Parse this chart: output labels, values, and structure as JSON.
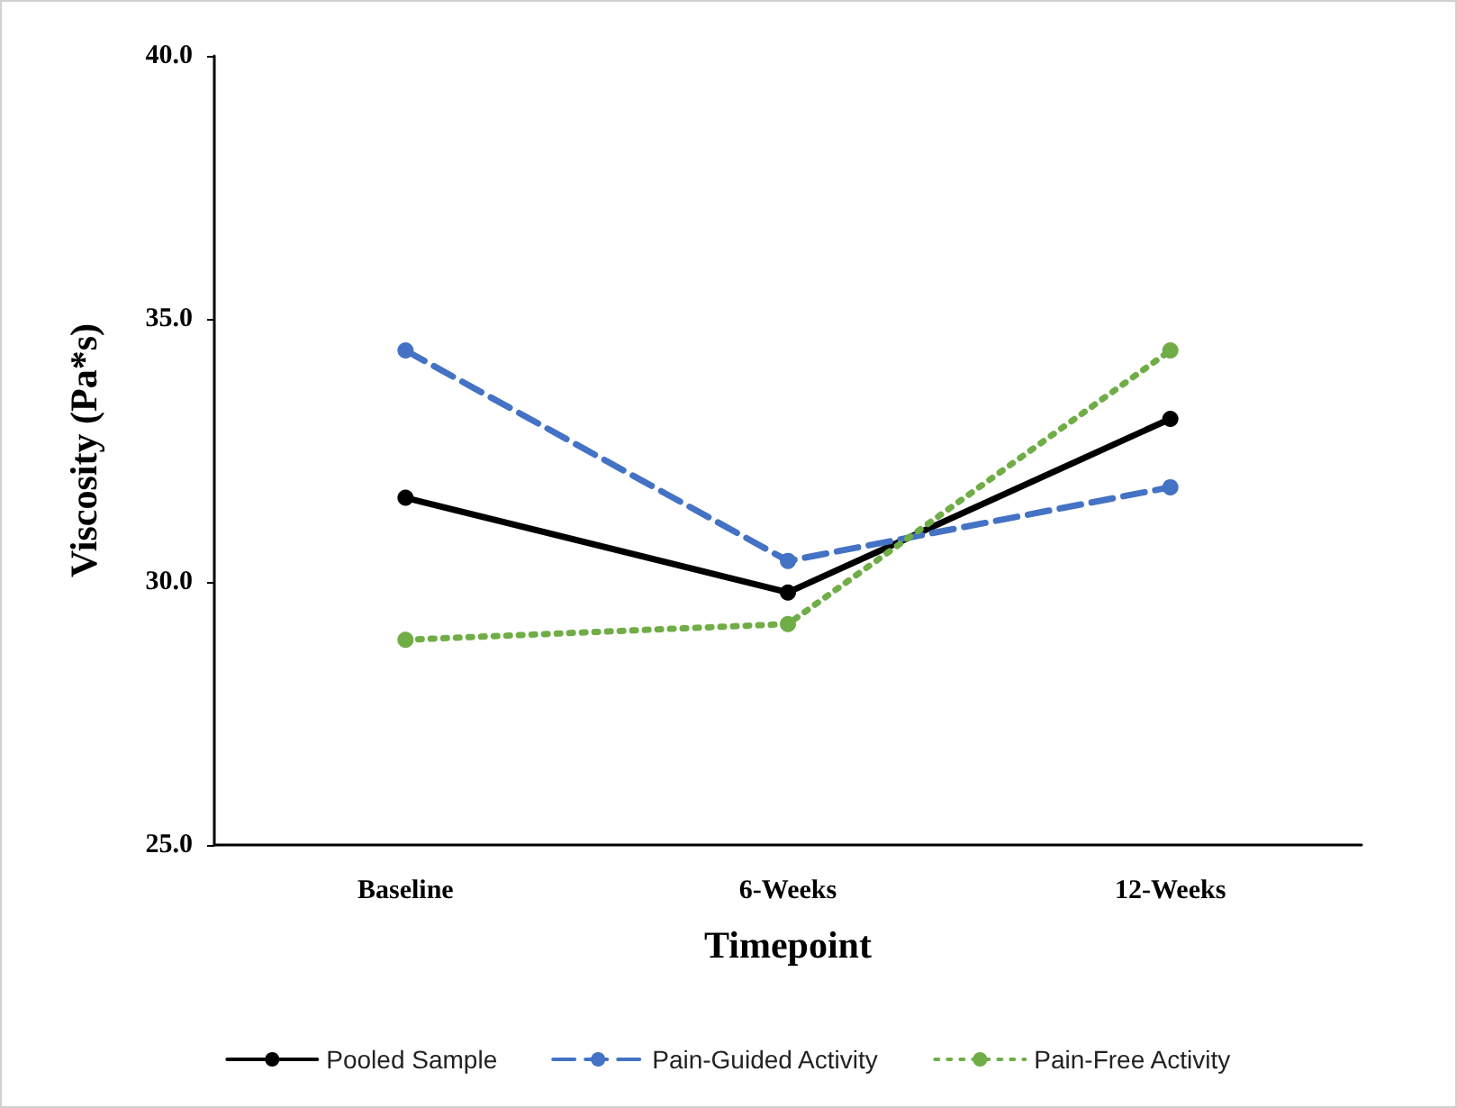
{
  "chart_data": {
    "type": "line",
    "xlabel": "Timepoint",
    "ylabel": "Viscosity (Pa*s)",
    "categories": [
      "Baseline",
      "6-Weeks",
      "12-Weeks"
    ],
    "series": [
      {
        "name": "Pooled Sample",
        "color": "#000000",
        "line_style": "solid",
        "values": [
          31.6,
          29.8,
          33.1
        ]
      },
      {
        "name": "Pain-Guided Activity",
        "color": "#4472c4",
        "line_style": "dashed",
        "values": [
          34.4,
          30.4,
          31.8
        ]
      },
      {
        "name": "Pain-Free Activity",
        "color": "#70ad47",
        "line_style": "dotted",
        "values": [
          28.9,
          29.2,
          34.4
        ]
      }
    ],
    "ylim": [
      25,
      40
    ],
    "yticks": [
      {
        "value": 25,
        "label": "25.0"
      },
      {
        "value": 30,
        "label": "30.0"
      },
      {
        "value": 35,
        "label": "35.0"
      },
      {
        "value": 40,
        "label": "40.0"
      }
    ],
    "grid": false,
    "legend": "bottom",
    "marker": "circle"
  }
}
